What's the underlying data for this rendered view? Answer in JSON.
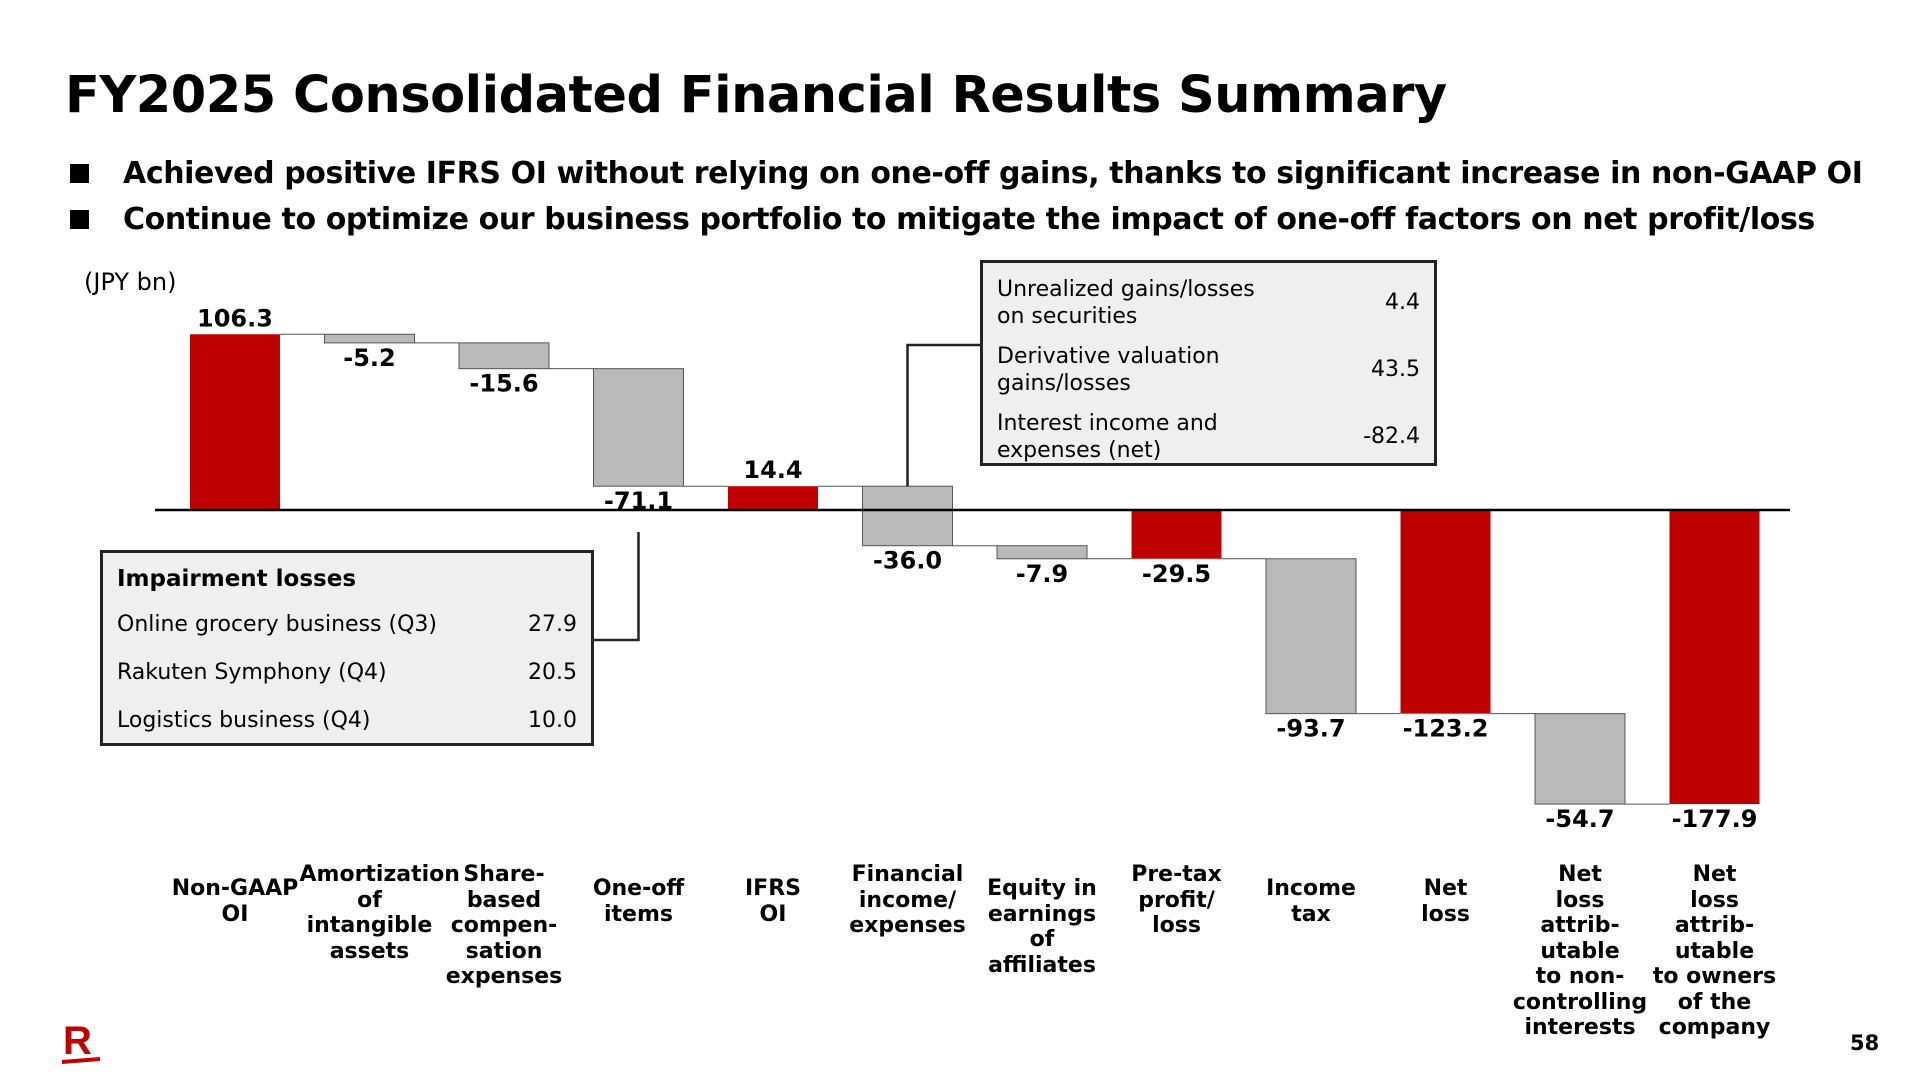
{
  "slide": {
    "title": "FY2025 Consolidated Financial Results Summary",
    "bullets": [
      "Achieved positive IFRS OI without relying on one-off gains, thanks to significant increase in non-GAAP OI",
      "Continue to optimize our business portfolio to mitigate the impact of one-off factors on net profit/loss"
    ],
    "unit": "(JPY bn)",
    "page_number": "58",
    "logo": "R"
  },
  "chart_data": {
    "type": "bar",
    "variant": "waterfall",
    "categories": [
      "Non-GAAP\nOI",
      "Amortization\nof\nintangible\nassets",
      "Share-\nbased\ncompen-\nsation\nexpenses",
      "One-off\nitems",
      "IFRS\nOI",
      "Financial\nincome/\nexpenses",
      "Equity in\nearnings\nof\naffiliates",
      "Pre-tax\nprofit/\nloss",
      "Income\ntax",
      "Net\nloss",
      "Net\nloss\nattrib-\nutable\nto non-\ncontrolling\ninterests",
      "Net\nloss\nattrib-\nutable\nto owners\nof the\ncompany"
    ],
    "values": [
      106.3,
      -5.2,
      -15.6,
      -71.1,
      14.4,
      -36.0,
      -7.9,
      -29.5,
      -93.7,
      -123.2,
      -54.7,
      -177.9
    ],
    "value_labels": [
      "106.3",
      "-5.2",
      "-15.6",
      "-71.1",
      "14.4",
      "-36.0",
      "-7.9",
      "-29.5",
      "-93.7",
      "-123.2",
      "-54.7",
      "-177.9"
    ],
    "bar_kind": [
      "total",
      "delta",
      "delta",
      "delta",
      "total",
      "delta",
      "delta",
      "total",
      "delta",
      "total",
      "delta",
      "total"
    ],
    "ylim": [
      -190,
      110
    ],
    "colors": {
      "total": "#bf0000",
      "delta": "#b9b9b9",
      "delta_border": "#555555",
      "axis": "#000000"
    },
    "grid": false,
    "callouts": [
      {
        "title": "",
        "linked_category": "Financial\nincome/\nexpenses",
        "rows": [
          {
            "label": "Unrealized gains/losses\non securities",
            "value": "4.4"
          },
          {
            "label": "Derivative valuation\ngains/losses",
            "value": "43.5"
          },
          {
            "label": "Interest income and\nexpenses (net)",
            "value": "-82.4"
          }
        ]
      },
      {
        "title": "Impairment losses",
        "linked_category": "One-off\nitems",
        "rows": [
          {
            "label": "Online grocery business (Q3)",
            "value": "27.9"
          },
          {
            "label": "Rakuten Symphony (Q4)",
            "value": "20.5"
          },
          {
            "label": "Logistics business (Q4)",
            "value": "10.0"
          }
        ]
      }
    ]
  }
}
